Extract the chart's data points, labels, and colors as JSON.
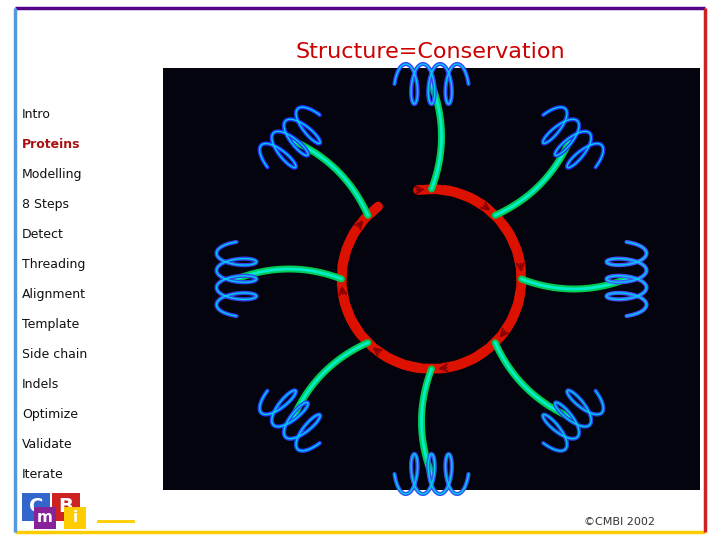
{
  "title": "Structure=Conservation",
  "title_color": "#cc0000",
  "title_fontsize": 16,
  "background_color": "#ffffff",
  "border_left_color": "#5599dd",
  "border_right_color": "#cc2222",
  "border_top_color": "#550088",
  "border_bottom_color": "#ffcc00",
  "nav_items": [
    "Intro",
    "Proteins",
    "Modelling",
    "8 Steps",
    "Detect",
    "Threading",
    "Alignment",
    "Template",
    "Side chain",
    "Indels",
    "Optimize",
    "Validate",
    "Iterate"
  ],
  "nav_active": "Proteins",
  "nav_active_color": "#aa1111",
  "nav_inactive_color": "#111111",
  "nav_fontsize": 9,
  "copyright_text": "©CMBI 2002",
  "copyright_color": "#333333",
  "copyright_fontsize": 8,
  "logo_C_color": "#3366cc",
  "logo_m_color": "#882299",
  "logo_B_color": "#cc2222",
  "logo_i_color": "#ffcc00"
}
